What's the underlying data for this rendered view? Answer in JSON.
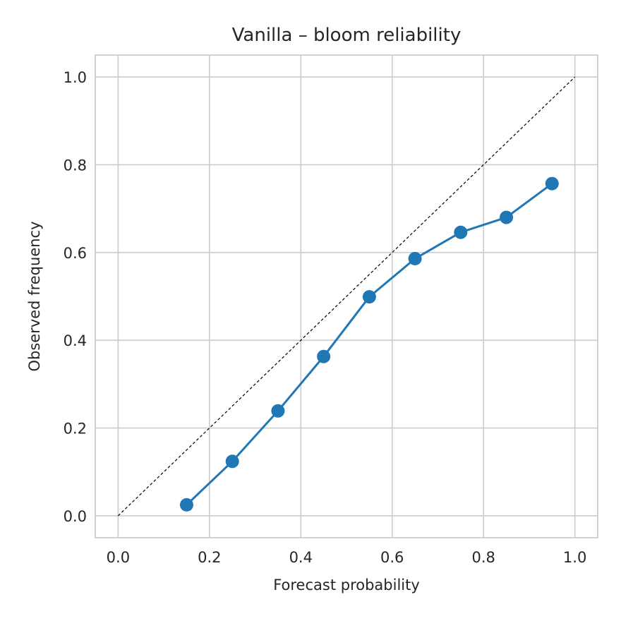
{
  "chart_data": {
    "type": "line",
    "title": "Vanilla – bloom reliability",
    "xlabel": "Forecast probability",
    "ylabel": "Observed frequency",
    "xlim": [
      -0.05,
      1.05
    ],
    "ylim": [
      -0.05,
      1.05
    ],
    "xticks": [
      "0.0",
      "0.2",
      "0.4",
      "0.6",
      "0.8",
      "1.0"
    ],
    "yticks": [
      "0.0",
      "0.2",
      "0.4",
      "0.6",
      "0.8",
      "1.0"
    ],
    "grid": true,
    "reference_line": {
      "x": [
        0,
        1
      ],
      "y": [
        0,
        1
      ],
      "style": "dashed",
      "color": "#000000"
    },
    "series": [
      {
        "color": "#1f77b4",
        "x": [
          0.15,
          0.25,
          0.35,
          0.45,
          0.55,
          0.65,
          0.75,
          0.85,
          0.95
        ],
        "y": [
          0.025,
          0.124,
          0.239,
          0.363,
          0.499,
          0.586,
          0.646,
          0.68,
          0.757
        ]
      }
    ]
  }
}
